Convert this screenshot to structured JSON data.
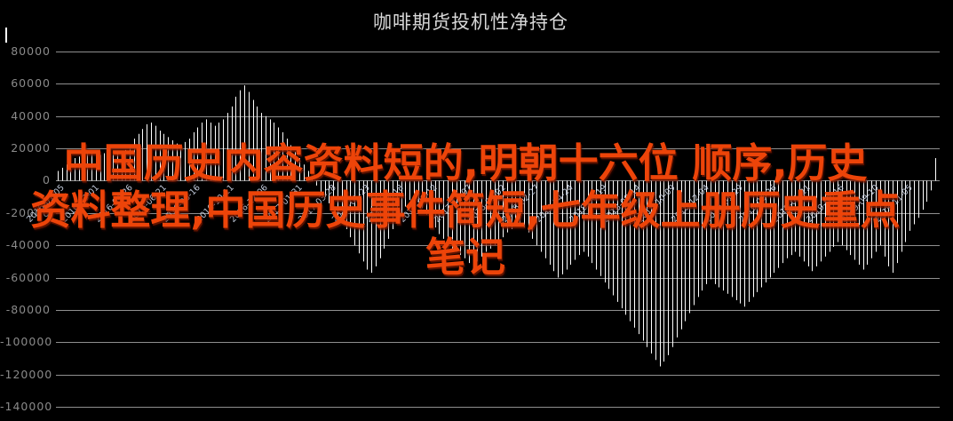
{
  "title": "咖啡期货投机性净持仓",
  "watermark": {
    "color": "#ed4409",
    "lines": [
      "中国历史内容资料短的,明朝十六位 顺序,历史",
      "资料整理,中国历史事件简短,七年级上册历史重点",
      "笔记"
    ]
  },
  "colors": {
    "background": "#000000",
    "bar": "#ffffff",
    "gridline": "#8f8f8f",
    "y_label": "#8a8a8a",
    "x_label": "#c2cbdc",
    "title": "#d9d9d9"
  },
  "chart_data": {
    "type": "bar",
    "title": "咖啡期货投机性净持仓",
    "xlabel": "",
    "ylabel": "",
    "ylim": [
      -140000,
      80000
    ],
    "grid": true,
    "legend": "none",
    "frequency": "weekly",
    "y_ticks": [
      80000,
      60000,
      40000,
      20000,
      0,
      -20000,
      -40000,
      -60000,
      -80000,
      -100000,
      -120000,
      -140000
    ],
    "x_tick_labels": [
      "2016-01-05",
      "2016-03-01",
      "2016-04-26",
      "2016-06-21",
      "2016-08-16",
      "2016-10-11",
      "2016-12-06",
      "2017-01-31",
      "2017-03-28",
      "2017-05-23",
      "2017-07-18",
      "2017-09-12",
      "2017-11-07",
      "2018-01-02",
      "2018-02-27",
      "2018-04-24",
      "2018-06-19",
      "2018-08-14",
      "2018-10-09",
      "2018-12-04",
      "2019-01-29",
      "2019-03-26",
      "2019-05-21",
      "2019-07-16",
      "2019-09-10",
      "2019-11-05"
    ],
    "x_ticks_every_n_bars": 8,
    "values": [
      6000,
      8000,
      10000,
      12000,
      14000,
      15000,
      16000,
      17000,
      18000,
      17000,
      16000,
      17000,
      18000,
      16000,
      17000,
      18000,
      19000,
      22000,
      26000,
      29000,
      32000,
      35000,
      36000,
      34000,
      31000,
      29000,
      27000,
      25000,
      23000,
      22000,
      24000,
      26000,
      30000,
      33000,
      36000,
      38000,
      36000,
      34000,
      36000,
      38000,
      42000,
      46000,
      52000,
      56000,
      59000,
      55000,
      50000,
      46000,
      42000,
      40000,
      38000,
      36000,
      33000,
      30000,
      26000,
      22000,
      18000,
      14000,
      10000,
      6000,
      2000,
      -3000,
      -7000,
      -10000,
      -14000,
      -18000,
      -22000,
      -26000,
      -30000,
      -35000,
      -40000,
      -45000,
      -50000,
      -55000,
      -57000,
      -53000,
      -48000,
      -42000,
      -36000,
      -30000,
      -25000,
      -20000,
      -16000,
      -12000,
      -10000,
      -13000,
      -17000,
      -21000,
      -25000,
      -29000,
      -33000,
      -36000,
      -39000,
      -42000,
      -44000,
      -46000,
      -48000,
      -51000,
      -53000,
      -50000,
      -47000,
      -44000,
      -42000,
      -40000,
      -38000,
      -35000,
      -32000,
      -30000,
      -28000,
      -26000,
      -29000,
      -32000,
      -36000,
      -40000,
      -44000,
      -48000,
      -52000,
      -56000,
      -60000,
      -58000,
      -55000,
      -52000,
      -49000,
      -46000,
      -44000,
      -47000,
      -51000,
      -55000,
      -59000,
      -63000,
      -67000,
      -71000,
      -75000,
      -79000,
      -83000,
      -87000,
      -91000,
      -95000,
      -99000,
      -103000,
      -107000,
      -111000,
      -115000,
      -112000,
      -108000,
      -103000,
      -97000,
      -92000,
      -87000,
      -82000,
      -77000,
      -72000,
      -68000,
      -64000,
      -61000,
      -64000,
      -66000,
      -68000,
      -70000,
      -72000,
      -74000,
      -76000,
      -78000,
      -75000,
      -72000,
      -69000,
      -66000,
      -63000,
      -60000,
      -57000,
      -54000,
      -51000,
      -48000,
      -46000,
      -44000,
      -47000,
      -50000,
      -53000,
      -56000,
      -53000,
      -50000,
      -47000,
      -44000,
      -41000,
      -38000,
      -40000,
      -43000,
      -46000,
      -49000,
      -52000,
      -55000,
      -52000,
      -48000,
      -44000,
      -40000,
      -47000,
      -53000,
      -57000,
      -51000,
      -44000,
      -38000,
      -31000,
      -27000,
      -23000,
      -18000,
      -13000,
      -6000,
      14000
    ]
  }
}
